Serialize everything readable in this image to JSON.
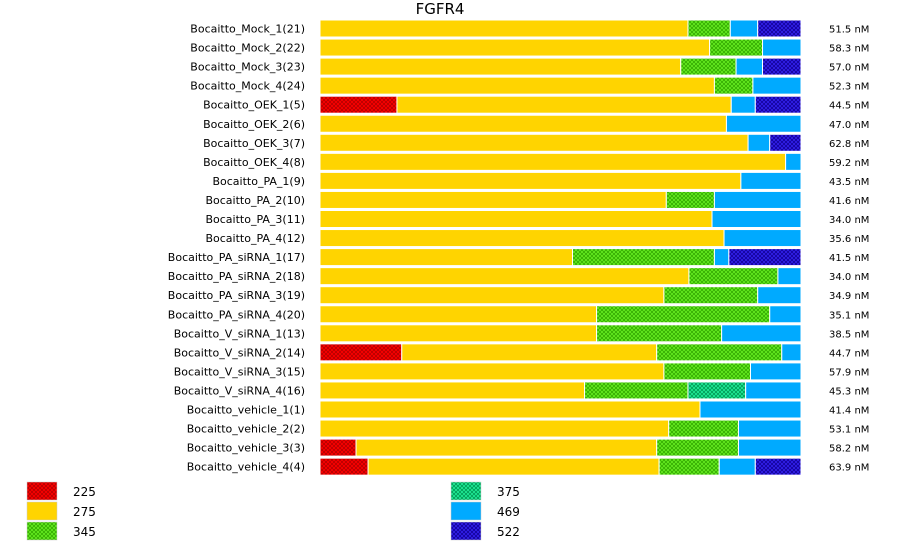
{
  "chart_data": {
    "type": "bar",
    "orientation": "horizontal-stacked-100",
    "title": "FGFR4",
    "categories": [
      "Bocaitto_Mock_1(21)",
      "Bocaitto_Mock_2(22)",
      "Bocaitto_Mock_3(23)",
      "Bocaitto_Mock_4(24)",
      "Bocaitto_OEK_1(5)",
      "Bocaitto_OEK_2(6)",
      "Bocaitto_OEK_3(7)",
      "Bocaitto_OEK_4(8)",
      "Bocaitto_PA_1(9)",
      "Bocaitto_PA_2(10)",
      "Bocaitto_PA_3(11)",
      "Bocaitto_PA_4(12)",
      "Bocaitto_PA_siRNA_1(17)",
      "Bocaitto_PA_siRNA_2(18)",
      "Bocaitto_PA_siRNA_3(19)",
      "Bocaitto_PA_siRNA_4(20)",
      "Bocaitto_V_siRNA_1(13)",
      "Bocaitto_V_siRNA_2(14)",
      "Bocaitto_V_siRNA_3(15)",
      "Bocaitto_V_siRNA_4(16)",
      "Bocaitto_vehicle_1(1)",
      "Bocaitto_vehicle_2(2)",
      "Bocaitto_vehicle_3(3)",
      "Bocaitto_vehicle_4(4)"
    ],
    "concentrations": [
      "51.5 nM",
      "58.3 nM",
      "57.0 nM",
      "52.3 nM",
      "44.5 nM",
      "47.0 nM",
      "62.8 nM",
      "59.2 nM",
      "43.5 nM",
      "41.6 nM",
      "34.0 nM",
      "35.6 nM",
      "41.5 nM",
      "34.0 nM",
      "34.9 nM",
      "35.1 nM",
      "38.5 nM",
      "44.7 nM",
      "57.9 nM",
      "45.3 nM",
      "41.4 nM",
      "53.1 nM",
      "58.2 nM",
      "63.9 nM"
    ],
    "series": [
      {
        "name": "225",
        "color": "#ff0000",
        "pattern": "hatch",
        "values": [
          0,
          0,
          0,
          0,
          16.0,
          0,
          0,
          0,
          0,
          0,
          0,
          0,
          0,
          0,
          0,
          0,
          0,
          17.0,
          0,
          0,
          0,
          0,
          7.5,
          10.0
        ]
      },
      {
        "name": "275",
        "color": "#ffd400",
        "pattern": "solid",
        "values": [
          76.5,
          81.0,
          75.0,
          82.0,
          69.5,
          84.5,
          89.0,
          96.8,
          87.5,
          72.0,
          81.5,
          84.0,
          52.5,
          76.7,
          71.5,
          57.5,
          57.5,
          53.0,
          71.5,
          55.0,
          79.0,
          72.5,
          62.5,
          60.5
        ]
      },
      {
        "name": "345",
        "color": "#66ee22",
        "pattern": "hatch",
        "values": [
          8.8,
          11.0,
          11.5,
          8.0,
          0,
          0,
          0,
          0,
          0,
          10.0,
          0,
          0,
          29.5,
          18.5,
          19.5,
          36.0,
          26.0,
          26.0,
          18.0,
          21.5,
          0,
          14.5,
          17.0,
          12.5
        ]
      },
      {
        "name": "375",
        "color": "#22ee99",
        "pattern": "hatch",
        "values": [
          0,
          0,
          0,
          0,
          0,
          0,
          0,
          0,
          0,
          0,
          0,
          0,
          0,
          0,
          0,
          0,
          0,
          0,
          0,
          12.0,
          0,
          0,
          0,
          0
        ]
      },
      {
        "name": "469",
        "color": "#00aaff",
        "pattern": "solid",
        "values": [
          5.7,
          8.0,
          5.5,
          10.0,
          5.0,
          15.5,
          4.5,
          3.2,
          12.5,
          18.0,
          18.5,
          16.0,
          3.0,
          4.8,
          9.0,
          6.5,
          16.5,
          4.0,
          10.5,
          11.5,
          21.0,
          13.0,
          13.0,
          7.5
        ]
      },
      {
        "name": "522",
        "color": "#3322ee",
        "pattern": "hatch",
        "values": [
          9.0,
          0,
          8.0,
          0,
          9.5,
          0,
          6.5,
          0,
          0,
          0,
          0,
          0,
          15.0,
          0,
          0,
          0,
          0,
          0,
          0,
          0,
          0,
          0,
          0,
          9.5
        ]
      }
    ],
    "xlim": [
      0,
      100
    ],
    "legend": [
      "225",
      "275",
      "345",
      "375",
      "469",
      "522"
    ],
    "legend_position": "bottom"
  }
}
